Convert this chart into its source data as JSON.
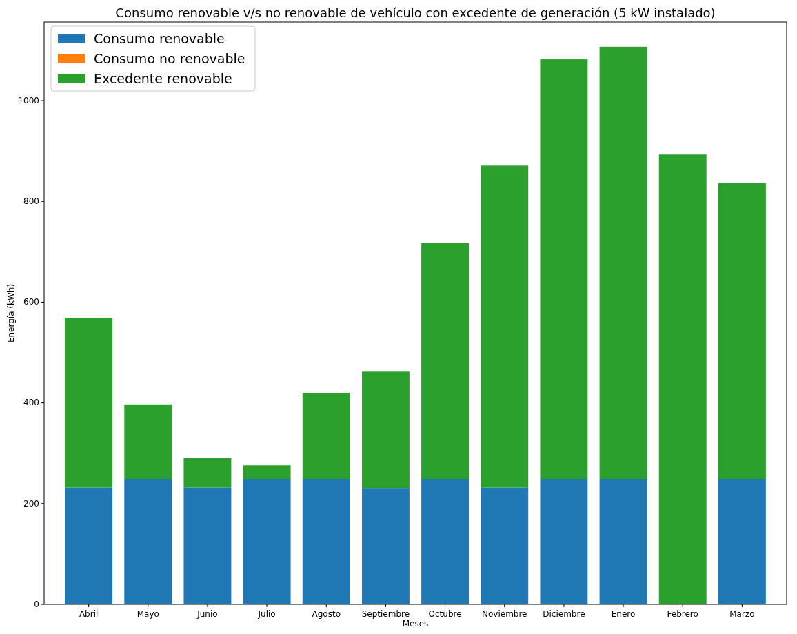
{
  "chart_data": {
    "type": "bar",
    "title": "Consumo renovable v/s no renovable de vehículo con excedente de generación (5 kW instalado)",
    "xlabel": "Meses",
    "ylabel": "Energía (kWh)",
    "categories": [
      "Abril",
      "Mayo",
      "Junio",
      "Julio",
      "Agosto",
      "Septiembre",
      "Octubre",
      "Noviembre",
      "Diciembre",
      "Enero",
      "Febrero",
      "Marzo"
    ],
    "stacked": true,
    "series": [
      {
        "name": "Consumo renovable",
        "color": "#1f77b4",
        "values": [
          232,
          249,
          232,
          249,
          249,
          231,
          249,
          232,
          249,
          249,
          0,
          249
        ]
      },
      {
        "name": "Consumo no renovable",
        "color": "#ff7f0e",
        "values": [
          0,
          0,
          0,
          0,
          0,
          0,
          0,
          0,
          0,
          0,
          0,
          0
        ]
      },
      {
        "name": "Excedente renovable",
        "color": "#2ca02c",
        "values": [
          337,
          148,
          59,
          27,
          171,
          231,
          468,
          639,
          833,
          858,
          893,
          587
        ]
      }
    ],
    "ylim": [
      0,
      1156
    ],
    "yticks": [
      0,
      200,
      400,
      600,
      800,
      1000
    ],
    "legend": "top left"
  }
}
